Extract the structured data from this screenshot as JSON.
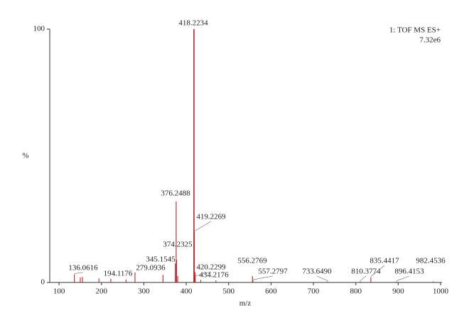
{
  "chart_data": {
    "type": "stick",
    "corner_title": "1: TOF MS ES+",
    "corner_subtitle": "7.32e6",
    "ylabel": "%",
    "xlabel": "m/z",
    "x": [
      136.0616,
      194.1176,
      279.0936,
      345.1545,
      374.2325,
      376.2488,
      418.2234,
      419.2269,
      420.2299,
      434.2176,
      556.2769,
      557.2797,
      733.649,
      810.3774,
      835.4417,
      896.4153,
      982.4536,
      150,
      155,
      222,
      258,
      377.3,
      380,
      421.2,
      470
    ],
    "x_labels": [
      "136.0616",
      "194.1176",
      "279.0936",
      "345.1545",
      "374.2325",
      "376.2488",
      "418.2234",
      "419.2269",
      "420.2299",
      "434.2176",
      "556.2769",
      "557.2797",
      "733.6490",
      "810.3774",
      "835.4417",
      "896.4153",
      "982.4536",
      null,
      null,
      null,
      null,
      null,
      null,
      null,
      null
    ],
    "values": [
      3.2,
      1.6,
      4,
      3,
      7.5,
      32,
      100,
      20,
      2.2,
      1,
      2.5,
      0.8,
      0.4,
      0.4,
      2,
      0.4,
      0.4,
      2,
      2.2,
      1.5,
      1.2,
      9,
      2.5,
      4,
      0.8
    ],
    "color": "#b5272d",
    "xlim": [
      78,
      1000
    ],
    "xticks": [
      100,
      200,
      300,
      400,
      500,
      600,
      700,
      800,
      900,
      1000
    ],
    "ylim": [
      0,
      100
    ],
    "yticks": [
      0,
      100
    ]
  }
}
